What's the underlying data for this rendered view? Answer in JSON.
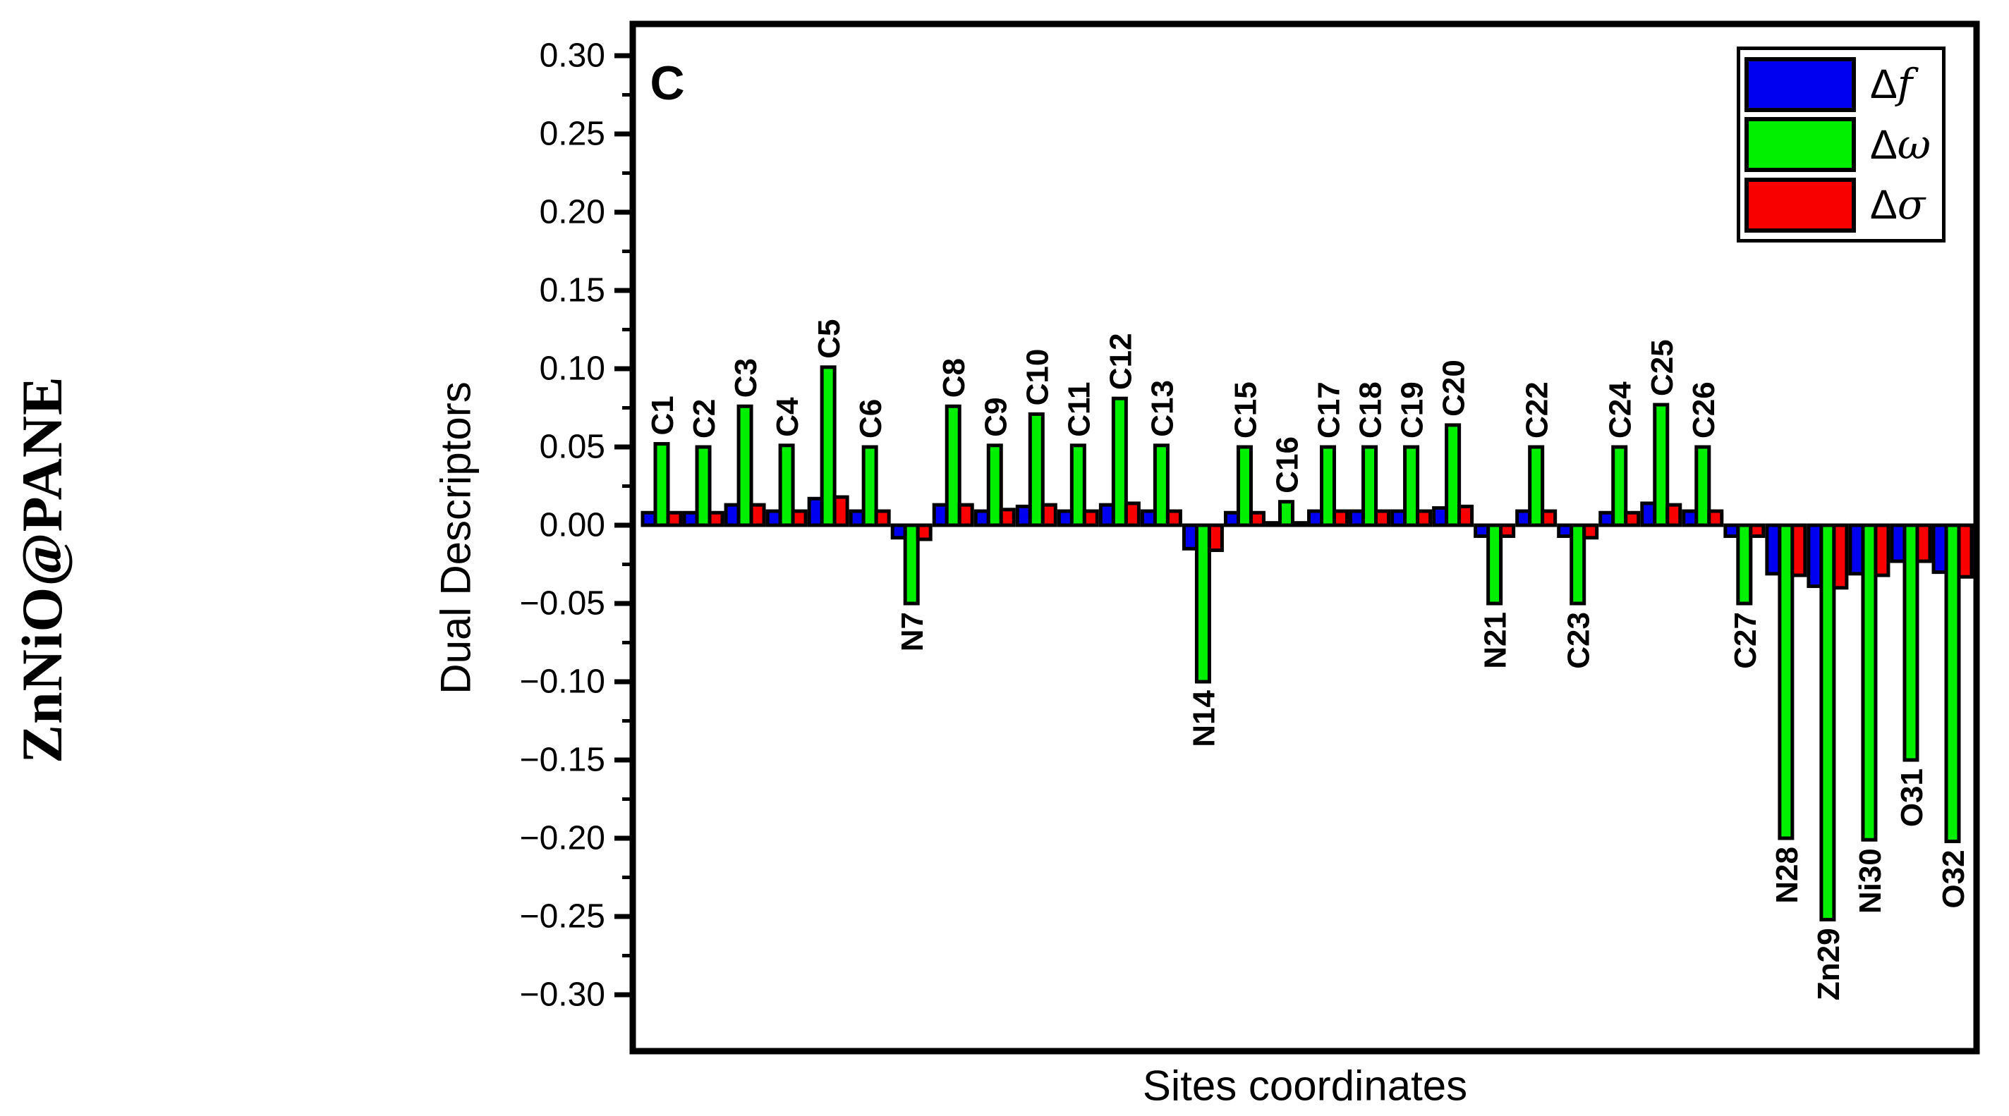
{
  "figure": {
    "side_title": "ZnNiO@PANE",
    "panel_label": "C",
    "background_color": "#ffffff"
  },
  "chart_data": {
    "type": "bar",
    "title": "",
    "xlabel": "Sites coordinates",
    "ylabel": "Dual Descriptors",
    "categories": [
      "C1",
      "C2",
      "C3",
      "C4",
      "C5",
      "C6",
      "N7",
      "C8",
      "C9",
      "C10",
      "C11",
      "C12",
      "C13",
      "N14",
      "C15",
      "C16",
      "C17",
      "C18",
      "C19",
      "C20",
      "N21",
      "C22",
      "C23",
      "C24",
      "C25",
      "C26",
      "C27",
      "N28",
      "Zn29",
      "Ni30",
      "O31",
      "O32"
    ],
    "series": [
      {
        "name": "Δf",
        "color": "#0000F0",
        "values": [
          0.008,
          0.008,
          0.013,
          0.009,
          0.017,
          0.009,
          -0.008,
          0.013,
          0.009,
          0.012,
          0.009,
          0.013,
          0.009,
          -0.015,
          0.008,
          0.0015,
          0.009,
          0.009,
          0.009,
          0.011,
          -0.007,
          0.009,
          -0.007,
          0.008,
          0.014,
          0.009,
          -0.007,
          -0.031,
          -0.039,
          -0.031,
          -0.023,
          -0.03
        ]
      },
      {
        "name": "Δω",
        "color": "#00F000",
        "values": [
          0.052,
          0.05,
          0.076,
          0.051,
          0.101,
          0.05,
          -0.05,
          0.076,
          0.051,
          0.071,
          0.051,
          0.081,
          0.051,
          -0.1,
          0.05,
          0.015,
          0.05,
          0.05,
          0.05,
          0.064,
          -0.05,
          0.05,
          -0.05,
          0.05,
          0.077,
          0.05,
          -0.05,
          -0.2,
          -0.252,
          -0.201,
          -0.15,
          -0.202
        ]
      },
      {
        "name": "Δσ",
        "color": "#F80000",
        "values": [
          0.008,
          0.008,
          0.013,
          0.009,
          0.018,
          0.009,
          -0.009,
          0.013,
          0.01,
          0.013,
          0.009,
          0.014,
          0.009,
          -0.016,
          0.008,
          0.0015,
          0.009,
          0.009,
          0.009,
          0.012,
          -0.007,
          0.009,
          -0.008,
          0.008,
          0.013,
          0.009,
          -0.007,
          -0.032,
          -0.04,
          -0.032,
          -0.023,
          -0.033
        ]
      }
    ],
    "ylim": [
      -0.337,
      0.32
    ],
    "y_axis": {
      "major_ticks": [
        0.3,
        0.25,
        0.2,
        0.15,
        0.1,
        0.05,
        0.0,
        -0.05,
        -0.1,
        -0.15,
        -0.2,
        -0.25,
        -0.3
      ],
      "major_tick_labels": [
        "0.30",
        "0.25",
        "0.20",
        "0.15",
        "0.10",
        "0.05",
        "0.00",
        "−0.05",
        "−0.10",
        "−0.15",
        "−0.20",
        "−0.25",
        "−0.30"
      ],
      "minor_ticks": [
        0.275,
        0.225,
        0.175,
        0.125,
        0.075,
        0.025,
        -0.025,
        -0.075,
        -0.125,
        -0.175,
        -0.225,
        -0.275
      ]
    },
    "grid": false,
    "bar_outline_color": "#000000",
    "legend_position": "top-right"
  },
  "legend": {
    "items": [
      {
        "prefix": "Δ",
        "symbol": "f"
      },
      {
        "prefix": "Δ",
        "symbol": "ω"
      },
      {
        "prefix": "Δ",
        "symbol": "σ"
      }
    ]
  }
}
